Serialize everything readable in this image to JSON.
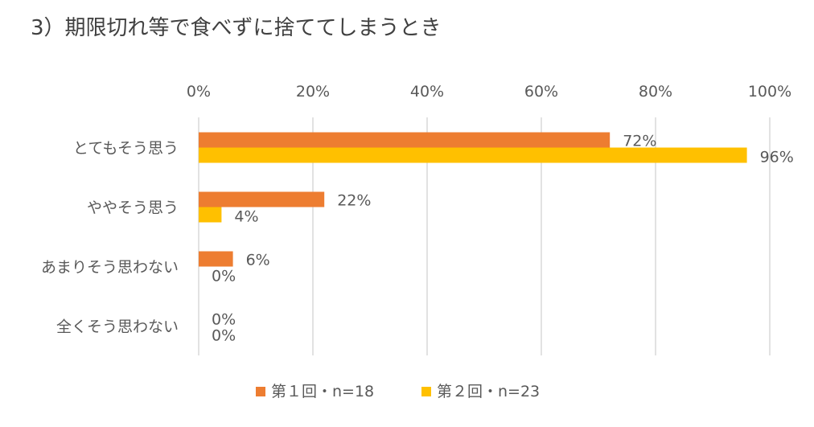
{
  "chart_data": {
    "type": "bar",
    "orientation": "horizontal",
    "title": "3）期限切れ等で食べずに捨ててしまうとき",
    "categories": [
      "とてもそう思う",
      "ややそう思う",
      "あまりそう思わない",
      "全くそう思わない"
    ],
    "series": [
      {
        "name": "第１回・n=18",
        "color": "#ED7D31",
        "values": [
          72,
          22,
          6,
          0
        ],
        "labels": [
          "72%",
          "22%",
          "6%",
          "0%"
        ]
      },
      {
        "name": "第２回・n=23",
        "color": "#FFC000",
        "values": [
          96,
          4,
          0,
          0
        ],
        "labels": [
          "96%",
          "4%",
          "0%",
          "0%"
        ]
      }
    ],
    "x_ticks": [
      "0%",
      "20%",
      "40%",
      "60%",
      "80%",
      "100%"
    ],
    "xlim": [
      0,
      100
    ],
    "grid": true,
    "legend_position": "bottom"
  }
}
